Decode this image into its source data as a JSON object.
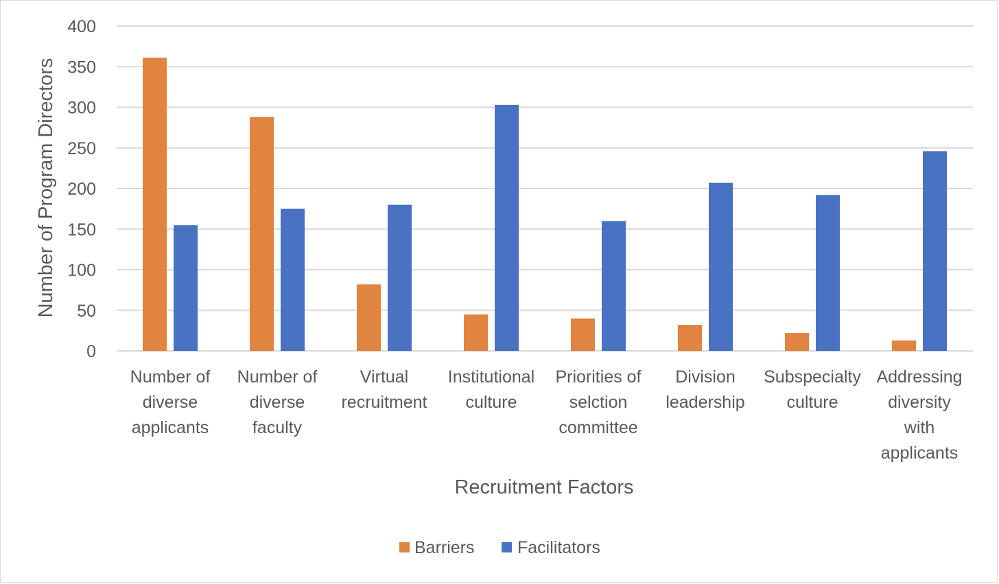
{
  "chart_data": {
    "type": "bar",
    "title": "",
    "xlabel": "Recruitment Factors",
    "ylabel": "Number of Program Directors",
    "ylim": [
      0,
      400
    ],
    "yticks": [
      0,
      50,
      100,
      150,
      200,
      250,
      300,
      350,
      400
    ],
    "grid": true,
    "legend_position": "bottom",
    "categories": [
      [
        "Number of",
        "diverse",
        "applicants"
      ],
      [
        "Number of",
        "diverse",
        "faculty"
      ],
      [
        "Virtual",
        "recruitment"
      ],
      [
        "Institutional",
        "culture"
      ],
      [
        "Priorities of",
        "selction",
        "committee"
      ],
      [
        "Division",
        "leadership"
      ],
      [
        "Subspecialty",
        "culture"
      ],
      [
        "Addressing",
        "diversity",
        "with",
        "applicants"
      ]
    ],
    "series": [
      {
        "name": "Barriers",
        "color": "#E0843F",
        "values": [
          361,
          288,
          82,
          45,
          40,
          32,
          22,
          13
        ]
      },
      {
        "name": "Facilitators",
        "color": "#4A72C2",
        "values": [
          155,
          175,
          180,
          303,
          160,
          207,
          192,
          246
        ]
      }
    ]
  }
}
